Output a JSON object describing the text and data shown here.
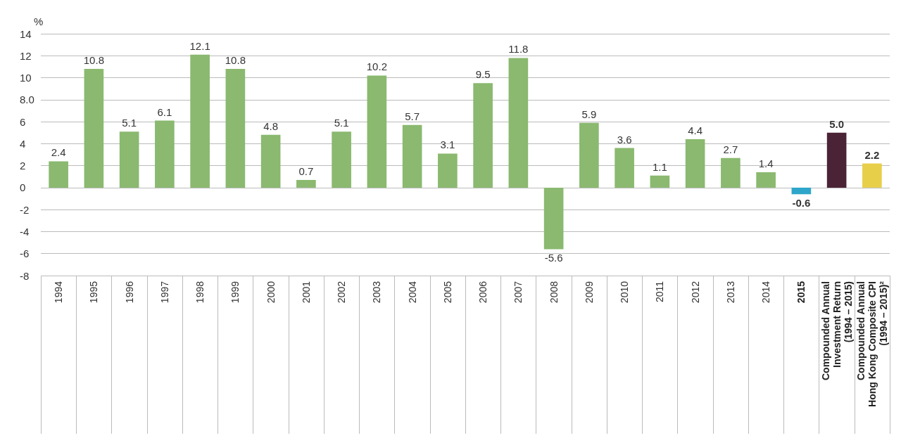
{
  "chart_data": {
    "type": "bar",
    "ylabel": "%",
    "categories": [
      "1994",
      "1995",
      "1996",
      "1997",
      "1998",
      "1999",
      "2000",
      "2001",
      "2002",
      "2003",
      "2004",
      "2005",
      "2006",
      "2007",
      "2008",
      "2009",
      "2010",
      "2011",
      "2012",
      "2013",
      "2014",
      "2015",
      "Compounded Annual\nInvestment Return\n(1994 – 2015)",
      "Compounded Annual\nHong Kong Composite CPI\n(1994 – 2015)²"
    ],
    "values": [
      2.4,
      10.8,
      5.1,
      6.1,
      12.1,
      10.8,
      4.8,
      0.7,
      5.1,
      10.2,
      5.7,
      3.1,
      9.5,
      11.8,
      -5.6,
      5.9,
      3.6,
      1.1,
      4.4,
      2.7,
      1.4,
      -0.6,
      5.0,
      2.2
    ],
    "value_labels": [
      "2.4",
      "10.8",
      "5.1",
      "6.1",
      "12.1",
      "10.8",
      "4.8",
      "0.7",
      "5.1",
      "10.2",
      "5.7",
      "3.1",
      "9.5",
      "11.8",
      "-5.6",
      "5.9",
      "3.6",
      "1.1",
      "4.4",
      "2.7",
      "1.4",
      "-0.6",
      "5.0",
      "2.2"
    ],
    "colors": [
      "#8ab96f",
      "#8ab96f",
      "#8ab96f",
      "#8ab96f",
      "#8ab96f",
      "#8ab96f",
      "#8ab96f",
      "#8ab96f",
      "#8ab96f",
      "#8ab96f",
      "#8ab96f",
      "#8ab96f",
      "#8ab96f",
      "#8ab96f",
      "#8ab96f",
      "#8ab96f",
      "#8ab96f",
      "#8ab96f",
      "#8ab96f",
      "#8ab96f",
      "#8ab96f",
      "#2ea6c9",
      "#4b2336",
      "#e8cf4a"
    ],
    "ylim": [
      -8,
      14
    ],
    "yticks": [
      -8,
      -6,
      -4,
      -2,
      0,
      2,
      4,
      6,
      {
        "value": 8,
        "label": "8.0"
      },
      10,
      12,
      14
    ],
    "grid": "y"
  }
}
